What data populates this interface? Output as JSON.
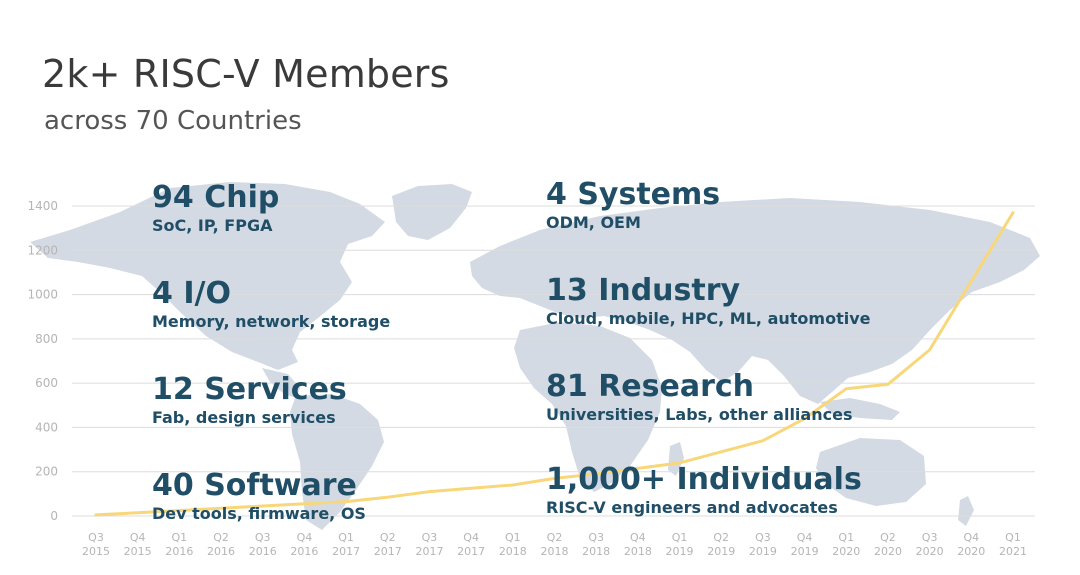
{
  "slide": {
    "title": "2k+ RISC-V Members",
    "subtitle": "across 70 Countries"
  },
  "categories": {
    "left": [
      {
        "headline": "94 Chip",
        "detail": "SoC, IP, FPGA"
      },
      {
        "headline": "4 I/O",
        "detail": "Memory, network, storage"
      },
      {
        "headline": "12 Services",
        "detail": "Fab, design services"
      },
      {
        "headline": "40 Software",
        "detail": "Dev tools, firmware, OS"
      }
    ],
    "right": [
      {
        "headline": "4 Systems",
        "detail": "ODM, OEM"
      },
      {
        "headline": "13 Industry",
        "detail": "Cloud, mobile, HPC, ML, automotive"
      },
      {
        "headline": "81 Research",
        "detail": "Universities, Labs, other alliances"
      },
      {
        "headline": "1,000+ Individuals",
        "detail": "RISC-V engineers and advocates"
      }
    ]
  },
  "colors": {
    "line": "#f8d77a",
    "grid": "#dcdcdc",
    "tick_text": "#b5b5b5",
    "map": "#cfd6e0",
    "stat_text": "#1f4e66"
  },
  "chart_data": {
    "type": "line",
    "x": [
      [
        "Q3",
        "2015"
      ],
      [
        "Q4",
        "2015"
      ],
      [
        "Q1",
        "2016"
      ],
      [
        "Q2",
        "2016"
      ],
      [
        "Q3",
        "2016"
      ],
      [
        "Q4",
        "2016"
      ],
      [
        "Q1",
        "2017"
      ],
      [
        "Q2",
        "2017"
      ],
      [
        "Q3",
        "2017"
      ],
      [
        "Q4",
        "2017"
      ],
      [
        "Q1",
        "2018"
      ],
      [
        "Q2",
        "2018"
      ],
      [
        "Q3",
        "2018"
      ],
      [
        "Q4",
        "2018"
      ],
      [
        "Q1",
        "2019"
      ],
      [
        "Q2",
        "2019"
      ],
      [
        "Q3",
        "2019"
      ],
      [
        "Q4",
        "2019"
      ],
      [
        "Q1",
        "2020"
      ],
      [
        "Q2",
        "2020"
      ],
      [
        "Q3",
        "2020"
      ],
      [
        "Q4",
        "2020"
      ],
      [
        "Q1",
        "2021"
      ]
    ],
    "series": [
      {
        "values": [
          5,
          15,
          25,
          35,
          45,
          55,
          65,
          85,
          110,
          125,
          140,
          170,
          190,
          215,
          240,
          290,
          340,
          440,
          575,
          595,
          750,
          1060,
          1370
        ]
      }
    ],
    "yticks": [
      0,
      200,
      400,
      600,
      800,
      1000,
      1200,
      1400
    ],
    "ylim": [
      0,
      1400
    ],
    "grid": true,
    "xlabel": "",
    "ylabel": ""
  }
}
